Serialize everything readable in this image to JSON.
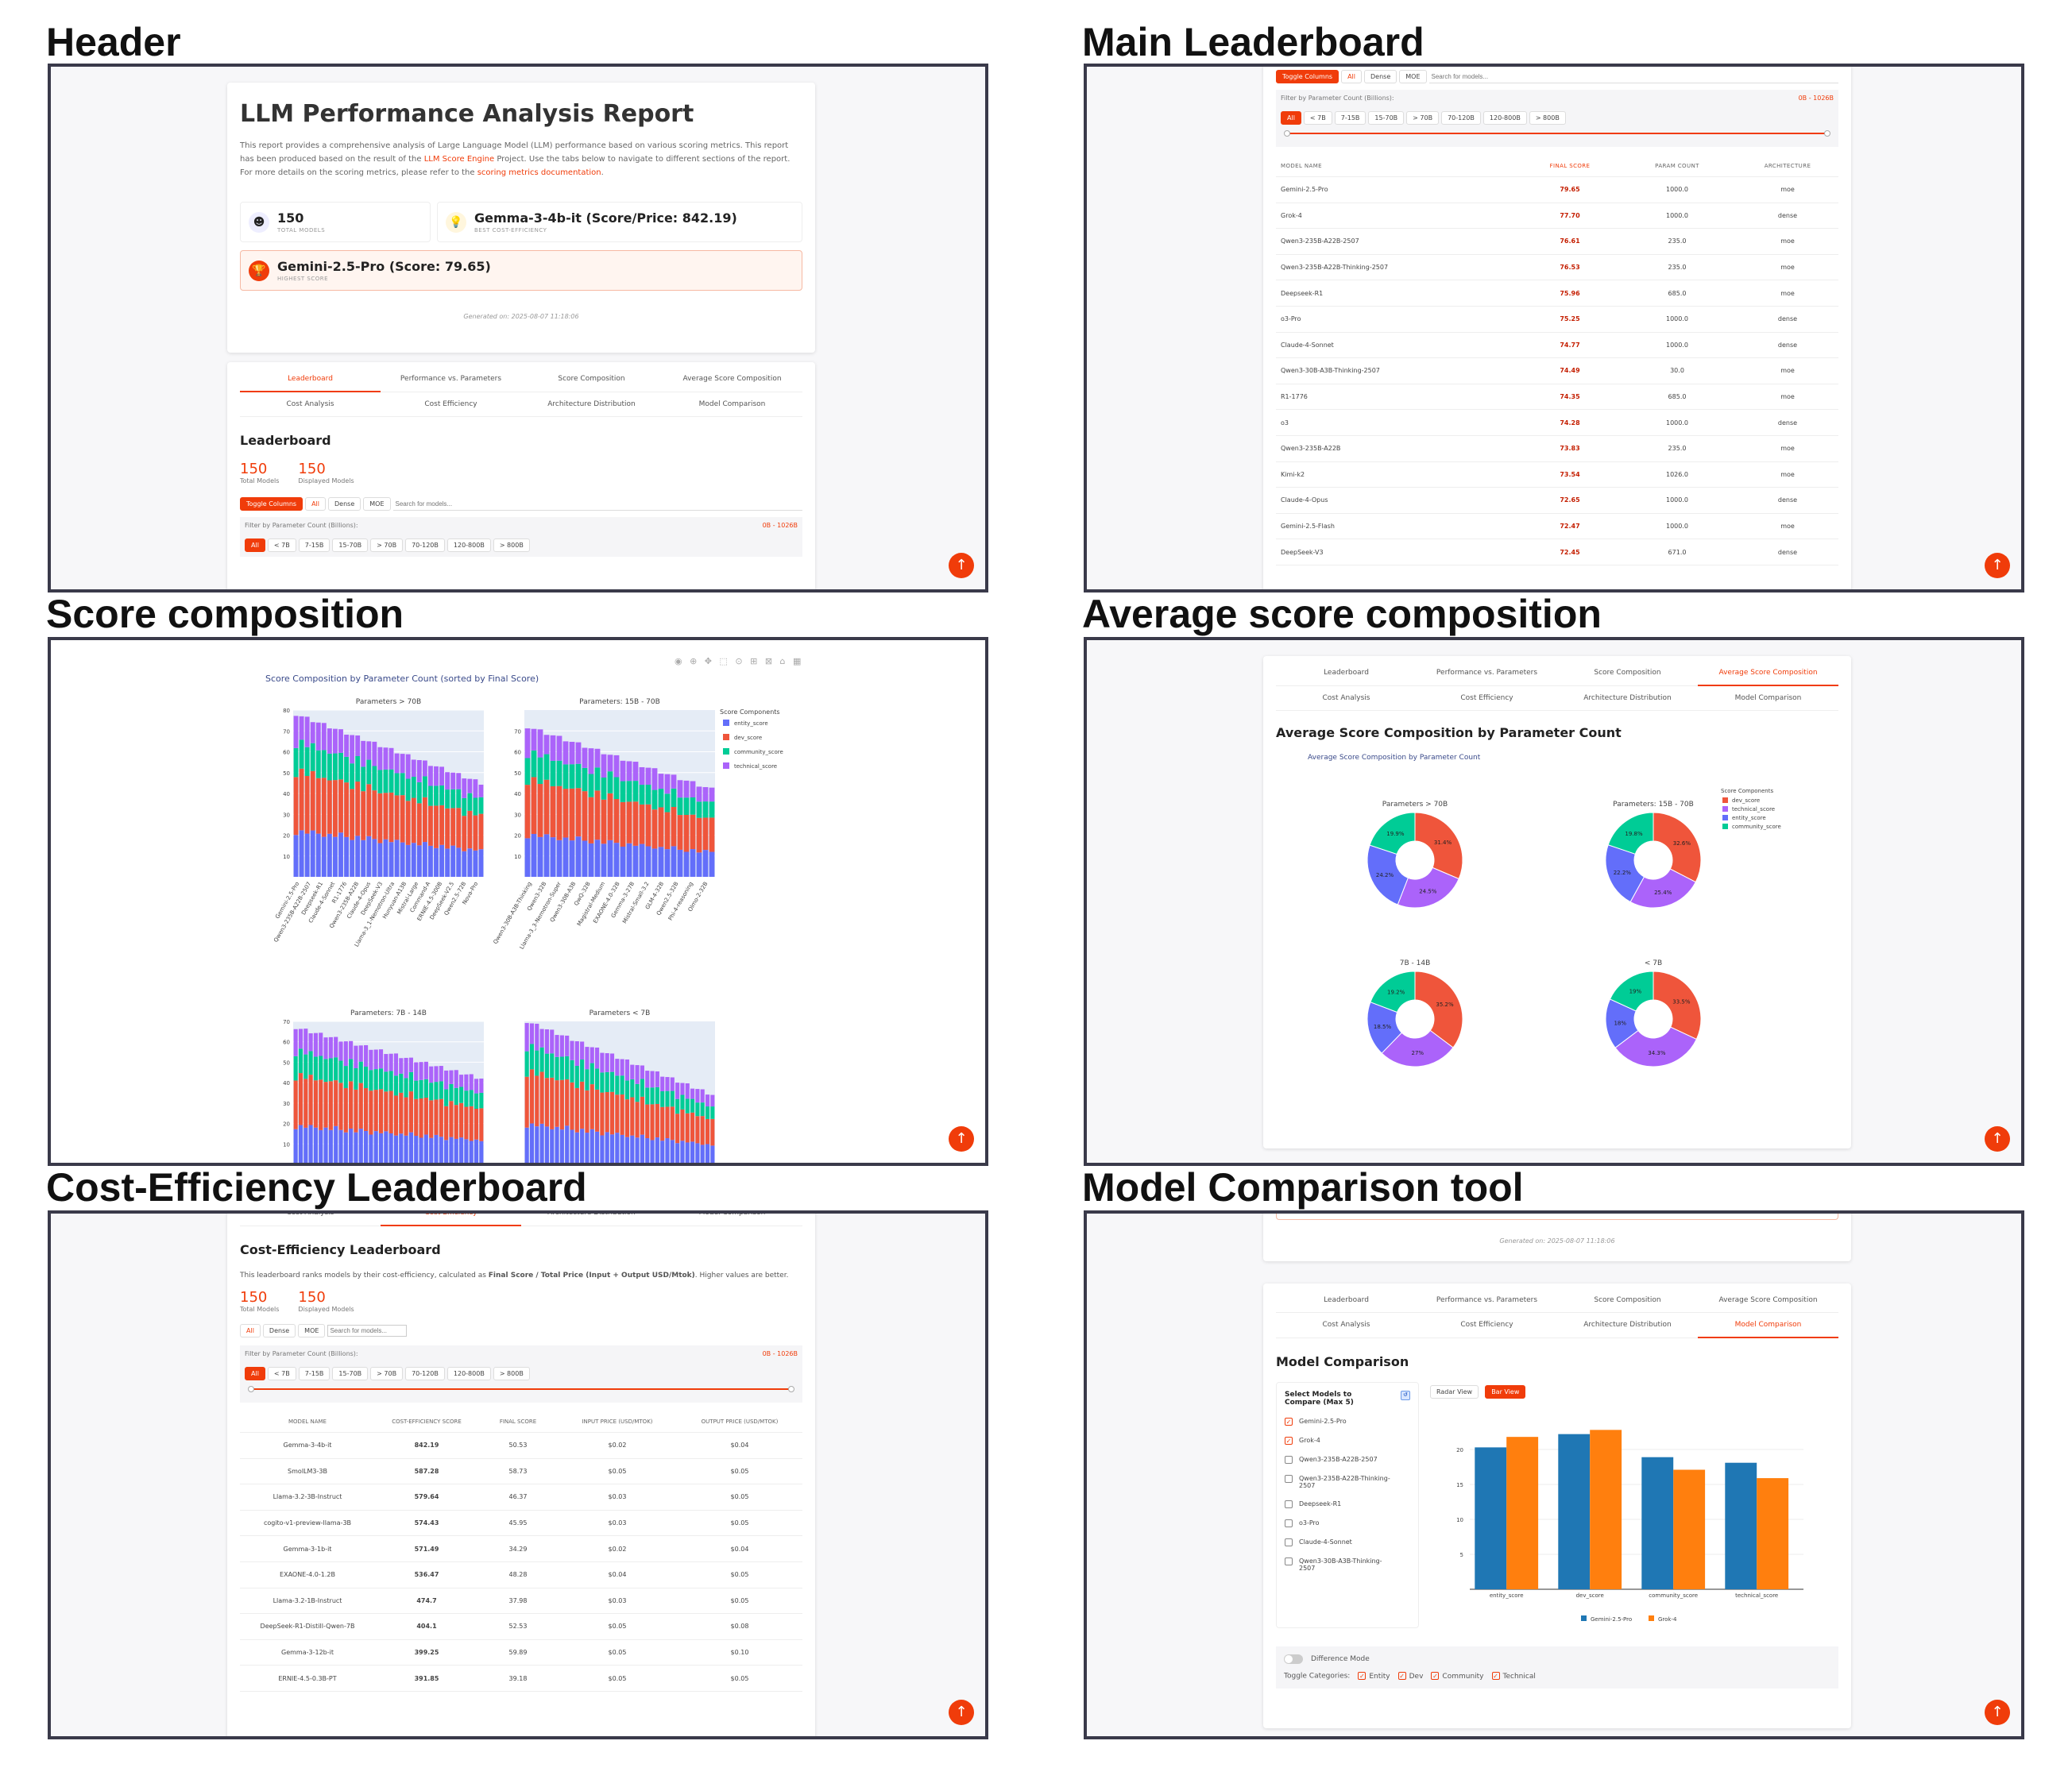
{
  "titles": {
    "header": "Header",
    "main": "Main Leaderboard",
    "score": "Score composition",
    "avg": "Average score composition",
    "cost": "Cost-Efficiency Leaderboard",
    "compare": "Model Comparison tool"
  },
  "report": {
    "title": "LLM Performance Analysis Report",
    "intro_a": "This report provides a comprehensive analysis of Large Language Model (LLM) performance based on various scoring metrics. This report has been produced based on the result of the ",
    "intro_link1": "LLM Score Engine",
    "intro_b": " Project. Use the tabs below to navigate to different sections of the report. For more details on the scoring metrics, please refer to the ",
    "intro_link2": "scoring metrics documentation",
    "intro_c": ".",
    "total_models": "150",
    "total_models_label": "TOTAL MODELS",
    "best_cost": "Gemma-3-4b-it (Score/Price: 842.19)",
    "best_cost_label": "BEST COST-EFFICIENCY",
    "highest": "Gemini-2.5-Pro (Score: 79.65)",
    "highest_label": "HIGHEST SCORE",
    "generated": "Generated on: 2025-08-07 11:18:06"
  },
  "tabs": [
    "Leaderboard",
    "Performance vs. Parameters",
    "Score Composition",
    "Average Score Composition",
    "Cost Analysis",
    "Cost Efficiency",
    "Architecture Distribution",
    "Model Comparison"
  ],
  "leaderboard": {
    "title": "Leaderboard",
    "total": "150",
    "total_label": "Total Models",
    "displayed": "150",
    "displayed_label": "Displayed Models",
    "toggle": "Toggle Columns",
    "arch_filters": [
      "All",
      "Dense",
      "MOE"
    ],
    "search_placeholder": "Search for models...",
    "param_label": "Filter by Parameter Count (Billions):",
    "range": "0B - 1026B",
    "param_filters": [
      "All",
      "< 7B",
      "7-15B",
      "15-70B",
      "> 70B",
      "70-120B",
      "120-800B",
      "> 800B"
    ],
    "columns": [
      "MODEL NAME",
      "FINAL SCORE",
      "PARAM COUNT",
      "ARCHITECTURE"
    ],
    "rows": [
      [
        "Gemini-2.5-Pro",
        "79.65",
        "1000.0",
        "moe"
      ],
      [
        "Grok-4",
        "77.70",
        "1000.0",
        "dense"
      ],
      [
        "Qwen3-235B-A22B-2507",
        "76.61",
        "235.0",
        "moe"
      ],
      [
        "Qwen3-235B-A22B-Thinking-2507",
        "76.53",
        "235.0",
        "moe"
      ],
      [
        "Deepseek-R1",
        "75.96",
        "685.0",
        "moe"
      ],
      [
        "o3-Pro",
        "75.25",
        "1000.0",
        "dense"
      ],
      [
        "Claude-4-Sonnet",
        "74.77",
        "1000.0",
        "dense"
      ],
      [
        "Qwen3-30B-A3B-Thinking-2507",
        "74.49",
        "30.0",
        "moe"
      ],
      [
        "R1-1776",
        "74.35",
        "685.0",
        "moe"
      ],
      [
        "o3",
        "74.28",
        "1000.0",
        "dense"
      ],
      [
        "Qwen3-235B-A22B",
        "73.83",
        "235.0",
        "moe"
      ],
      [
        "Kimi-k2",
        "73.54",
        "1026.0",
        "moe"
      ],
      [
        "Claude-4-Opus",
        "72.65",
        "1000.0",
        "dense"
      ],
      [
        "Gemini-2.5-Flash",
        "72.47",
        "1000.0",
        "moe"
      ],
      [
        "DeepSeek-V3",
        "72.45",
        "671.0",
        "dense"
      ]
    ]
  },
  "score_comp": {
    "title": "Score Composition by Parameter Count (sorted by Final Score)",
    "panels": [
      "Parameters > 70B",
      "Parameters: 15B - 70B",
      "Parameters: 7B - 14B",
      "Parameters < 7B"
    ],
    "legend_title": "Score Components",
    "legend": [
      "entity_score",
      "dev_score",
      "community_score",
      "technical_score"
    ],
    "colors": [
      "#636efa",
      "#ef553b",
      "#00cc96",
      "#ab63fa"
    ],
    "labels_a": [
      "Gemini-2.5-Pro",
      "Qwen3-235B-A22B-2507",
      "Deepseek-R1",
      "Claude-4-Sonnet",
      "R1-1776",
      "Qwen3-235B-A22B",
      "Claude-4-Opus",
      "DeepSeek-V3",
      "Llama-3_1-Nemotron-Ultra",
      "Hunyuan-A13B",
      "Mistral-Large",
      "Command-A",
      "ERNIE-4.5-300B",
      "DeepSeek-V2.5",
      "Qwen2.5-72B",
      "Nova-Pro"
    ],
    "labels_b": [
      "Qwen3-30B-A3B-Thinking",
      "Qwen3-32B",
      "Llama-3_3-Nemotron-Super",
      "Qwen3-30B-A3B",
      "QwQ-32B",
      "Magistral-Medium",
      "EXAONE-4.0-32B",
      "Gemma-3-27B",
      "Mistral-Small-3.2",
      "GLM-4-32B",
      "Qwen2.5-32B",
      "Phi-4-reasoning",
      "Olmo-2-32B"
    ]
  },
  "avg_comp": {
    "title": "Average Score Composition by Parameter Count",
    "chart_title": "Average Score Composition by Parameter Count",
    "panels": [
      "Parameters > 70B",
      "Parameters: 15B - 70B",
      "7B - 14B",
      "< 7B"
    ],
    "legend_title": "Score Components",
    "legend": [
      "dev_score",
      "technical_score",
      "entity_score",
      "community_score"
    ],
    "colors": [
      "#ef553b",
      "#ab63fa",
      "#636efa",
      "#00cc96"
    ],
    "pcts": [
      [
        "31.4%",
        "24.5%",
        "24.2%",
        "19.9%"
      ],
      [
        "32.6%",
        "25.4%",
        "22.2%",
        "19.8%"
      ],
      [
        "35.2%",
        "27%",
        "18.5%",
        "19.2%"
      ],
      [
        "33.5%",
        "34.3%",
        "18%",
        "19%"
      ]
    ]
  },
  "cost": {
    "title": "Cost-Efficiency Leaderboard",
    "desc_a": "This leaderboard ranks models by their cost-efficiency, calculated as ",
    "desc_b": "Final Score / Total Price (Input + Output USD/Mtok)",
    "desc_c": ". Higher values are better.",
    "columns": [
      "MODEL NAME",
      "COST-EFFICIENCY SCORE",
      "FINAL SCORE",
      "INPUT PRICE (USD/MTOK)",
      "OUTPUT PRICE (USD/MTOK)"
    ],
    "rows": [
      [
        "Gemma-3-4b-it",
        "842.19",
        "50.53",
        "$0.02",
        "$0.04"
      ],
      [
        "SmolLM3-3B",
        "587.28",
        "58.73",
        "$0.05",
        "$0.05"
      ],
      [
        "Llama-3.2-3B-Instruct",
        "579.64",
        "46.37",
        "$0.03",
        "$0.05"
      ],
      [
        "cogito-v1-preview-llama-3B",
        "574.43",
        "45.95",
        "$0.03",
        "$0.05"
      ],
      [
        "Gemma-3-1b-it",
        "571.49",
        "34.29",
        "$0.02",
        "$0.04"
      ],
      [
        "EXAONE-4.0-1.2B",
        "536.47",
        "48.28",
        "$0.04",
        "$0.05"
      ],
      [
        "Llama-3.2-1B-Instruct",
        "474.7",
        "37.98",
        "$0.03",
        "$0.05"
      ],
      [
        "DeepSeek-R1-Distill-Qwen-7B",
        "404.1",
        "52.53",
        "$0.05",
        "$0.08"
      ],
      [
        "Gemma-3-12b-it",
        "399.25",
        "59.89",
        "$0.05",
        "$0.10"
      ],
      [
        "ERNIE-4.5-0.3B-PT",
        "391.85",
        "39.18",
        "$0.05",
        "$0.05"
      ]
    ]
  },
  "compare": {
    "title": "Model Comparison",
    "select_title": "Select Models to Compare (Max 5)",
    "models": [
      [
        "Gemini-2.5-Pro",
        true
      ],
      [
        "Grok-4",
        true
      ],
      [
        "Qwen3-235B-A22B-2507",
        false
      ],
      [
        "Qwen3-235B-A22B-Thinking-2507",
        false
      ],
      [
        "Deepseek-R1",
        false
      ],
      [
        "o3-Pro",
        false
      ],
      [
        "Claude-4-Sonnet",
        false
      ],
      [
        "Qwen3-30B-A3B-Thinking-2507",
        false
      ]
    ],
    "views": [
      "Radar View",
      "Bar View"
    ],
    "diff_mode": "Difference Mode",
    "toggle_label": "Toggle Categories:",
    "categories": [
      "Entity",
      "Dev",
      "Community",
      "Technical"
    ],
    "generated": "Generated on: 2025-08-07 11:18:06"
  },
  "chart_data": [
    {
      "type": "pie",
      "title": "Parameters > 70B",
      "categories": [
        "dev_score",
        "technical_score",
        "entity_score",
        "community_score"
      ],
      "values": [
        31.4,
        24.5,
        24.2,
        19.9
      ]
    },
    {
      "type": "pie",
      "title": "Parameters: 15B - 70B",
      "categories": [
        "dev_score",
        "technical_score",
        "entity_score",
        "community_score"
      ],
      "values": [
        32.6,
        25.4,
        22.2,
        19.8
      ]
    },
    {
      "type": "pie",
      "title": "7B - 14B",
      "categories": [
        "dev_score",
        "technical_score",
        "entity_score",
        "community_score"
      ],
      "values": [
        35.2,
        27,
        18.5,
        19.2
      ]
    },
    {
      "type": "pie",
      "title": "< 7B",
      "categories": [
        "dev_score",
        "technical_score",
        "entity_score",
        "community_score"
      ],
      "values": [
        33.5,
        34.3,
        18,
        19
      ]
    },
    {
      "type": "bar",
      "title": "",
      "categories": [
        "entity_score",
        "dev_score",
        "community_score",
        "technical_score"
      ],
      "series": [
        {
          "name": "Gemini-2.5-Pro",
          "values": [
            20.3,
            22.2,
            18.9,
            18.1
          ]
        },
        {
          "name": "Grok-4",
          "values": [
            21.8,
            22.8,
            17.1,
            15.9
          ]
        }
      ],
      "ylim": [
        0,
        25
      ],
      "yticks": [
        5,
        10,
        15,
        20
      ],
      "colors": [
        "#1f77b4",
        "#ff7f0e"
      ]
    },
    {
      "type": "bar",
      "title": "Parameters > 70B",
      "stacked": true,
      "ylim": [
        0,
        80
      ],
      "yticks": [
        10,
        20,
        30,
        40,
        50,
        60,
        70,
        80
      ],
      "series_names": [
        "entity_score",
        "dev_score",
        "community_score",
        "technical_score"
      ]
    },
    {
      "type": "bar",
      "title": "Parameters: 15B - 70B",
      "stacked": true,
      "ylim": [
        0,
        80
      ],
      "yticks": [
        10,
        20,
        30,
        40,
        50,
        60,
        70
      ]
    },
    {
      "type": "bar",
      "title": "Parameters: 7B - 14B",
      "stacked": true,
      "ylim": [
        0,
        70
      ],
      "yticks": [
        10,
        20,
        30,
        40,
        50,
        60,
        70
      ]
    },
    {
      "type": "bar",
      "title": "Parameters < 7B",
      "stacked": true,
      "ylim": [
        0,
        70
      ]
    }
  ]
}
